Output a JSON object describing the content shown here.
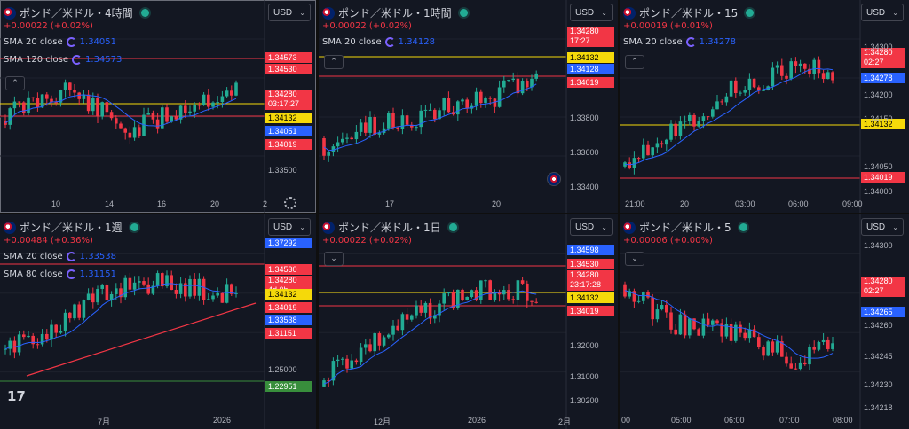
{
  "colors": {
    "up": "#22ab94",
    "down": "#f23645",
    "bg": "#131722",
    "sma_blue": "#2962ff",
    "sma_red": "#f23645",
    "yellow": "#f5d90a",
    "red_line": "#f23645"
  },
  "panes": [
    {
      "title": "ポンド／米ドル・4時間",
      "change": "+0.00022 (+0.02%)",
      "currency": "USD",
      "sma": [
        {
          "label": "SMA 20 close",
          "value": "1.34051"
        },
        {
          "label": "SMA 120 close",
          "value": "1.34573"
        }
      ],
      "price_labels": [
        {
          "lines": [
            "1.34573"
          ],
          "bg": "#f23645",
          "fg": "#ffffff"
        },
        {
          "lines": [
            "1.34530"
          ],
          "bg": "#f23645",
          "fg": "#ffffff"
        },
        {
          "lines": [
            "1.34280",
            "03:17:27"
          ],
          "bg": "#f23645",
          "fg": "#ffffff"
        },
        {
          "lines": [
            "1.34132"
          ],
          "bg": "#f5d90a",
          "fg": "#000000"
        },
        {
          "lines": [
            "1.34051"
          ],
          "bg": "#2962ff",
          "fg": "#ffffff"
        },
        {
          "lines": [
            "1.34019"
          ],
          "bg": "#f23645",
          "fg": "#ffffff"
        }
      ],
      "axis_prices": [
        "1.33500"
      ],
      "x_ticks": [
        "10",
        "14",
        "16",
        "20",
        "2"
      ]
    },
    {
      "title": "ポンド／米ドル・1時間",
      "change": "+0.00022 (+0.02%)",
      "currency": "USD",
      "sma": [
        {
          "label": "SMA 20 close",
          "value": "1.34128"
        }
      ],
      "price_labels": [
        {
          "lines": [
            "1.34280",
            "17:27"
          ],
          "bg": "#f23645",
          "fg": "#ffffff"
        },
        {
          "lines": [
            "1.34132"
          ],
          "bg": "#f5d90a",
          "fg": "#000000"
        },
        {
          "lines": [
            "1.34128"
          ],
          "bg": "#2962ff",
          "fg": "#ffffff"
        },
        {
          "lines": [
            "1.34019"
          ],
          "bg": "#f23645",
          "fg": "#ffffff"
        }
      ],
      "axis_prices": [
        "1.33800",
        "1.33600",
        "1.33400"
      ],
      "x_ticks": [
        "17",
        "20"
      ]
    },
    {
      "title": "ポンド／米ドル・15",
      "change": "+0.00019 (+0.01%)",
      "currency": "USD",
      "sma": [
        {
          "label": "SMA 20 close",
          "value": "1.34278"
        }
      ],
      "price_labels": [
        {
          "lines": [
            "1.34280",
            "02:27"
          ],
          "bg": "#f23645",
          "fg": "#ffffff"
        },
        {
          "lines": [
            "1.34278"
          ],
          "bg": "#2962ff",
          "fg": "#ffffff"
        },
        {
          "lines": [
            "1.34132"
          ],
          "bg": "#f5d90a",
          "fg": "#000000"
        },
        {
          "lines": [
            "1.34019"
          ],
          "bg": "#f23645",
          "fg": "#ffffff"
        }
      ],
      "axis_prices": [
        "1.34300",
        "1.34200",
        "1.34150",
        "1.34050",
        "1.34000"
      ],
      "x_ticks": [
        "21:00",
        "20",
        "03:00",
        "06:00",
        "09:00"
      ]
    },
    {
      "title": "ポンド／米ドル・1週",
      "change": "+0.00484 (+0.36%)",
      "currency": "USD",
      "sma": [
        {
          "label": "SMA 20 close",
          "value": "1.33538"
        },
        {
          "label": "SMA 80 close",
          "value": "1.31151"
        }
      ],
      "price_labels": [
        {
          "lines": [
            "1.37292"
          ],
          "bg": "#2962ff",
          "fg": "#ffffff"
        },
        {
          "lines": [
            "1.34530"
          ],
          "bg": "#f23645",
          "fg": "#ffffff"
        },
        {
          "lines": [
            "1.34280",
            "4d 0h"
          ],
          "bg": "#f23645",
          "fg": "#ffffff"
        },
        {
          "lines": [
            "1.34132"
          ],
          "bg": "#f5d90a",
          "fg": "#000000"
        },
        {
          "lines": [
            "1.34019"
          ],
          "bg": "#f23645",
          "fg": "#ffffff"
        },
        {
          "lines": [
            "1.33538"
          ],
          "bg": "#2962ff",
          "fg": "#ffffff"
        },
        {
          "lines": [
            "1.31151"
          ],
          "bg": "#f23645",
          "fg": "#ffffff"
        },
        {
          "lines": [
            "1.22951"
          ],
          "bg": "#388e3c",
          "fg": "#ffffff"
        }
      ],
      "axis_prices": [
        "1.25000"
      ],
      "x_ticks": [
        "7月",
        "2026"
      ]
    },
    {
      "title": "ポンド／米ドル・1日",
      "change": "+0.00022 (+0.02%)",
      "currency": "USD",
      "sma": [],
      "price_labels": [
        {
          "lines": [
            "1.34598"
          ],
          "bg": "#2962ff",
          "fg": "#ffffff"
        },
        {
          "lines": [
            "1.34530"
          ],
          "bg": "#f23645",
          "fg": "#ffffff"
        },
        {
          "lines": [
            "1.34280",
            "23:17:28"
          ],
          "bg": "#f23645",
          "fg": "#ffffff"
        },
        {
          "lines": [
            "1.34132"
          ],
          "bg": "#f5d90a",
          "fg": "#000000"
        },
        {
          "lines": [
            "1.34019"
          ],
          "bg": "#f23645",
          "fg": "#ffffff"
        }
      ],
      "axis_prices": [
        "1.32000",
        "1.31000",
        "1.30200"
      ],
      "x_ticks": [
        "12月",
        "2026",
        "2月"
      ]
    },
    {
      "title": "ポンド／米ドル・5",
      "change": "+0.00006 (+0.00%)",
      "currency": "USD",
      "sma": [],
      "price_labels": [
        {
          "lines": [
            "1.34280",
            "02:27"
          ],
          "bg": "#f23645",
          "fg": "#ffffff"
        },
        {
          "lines": [
            "1.34265"
          ],
          "bg": "#2962ff",
          "fg": "#ffffff"
        }
      ],
      "axis_prices": [
        "1.34300",
        "1.34260",
        "1.34245",
        "1.34230",
        "1.34218"
      ],
      "x_ticks": [
        "00",
        "05:00",
        "06:00",
        "07:00",
        "08:00"
      ]
    }
  ]
}
